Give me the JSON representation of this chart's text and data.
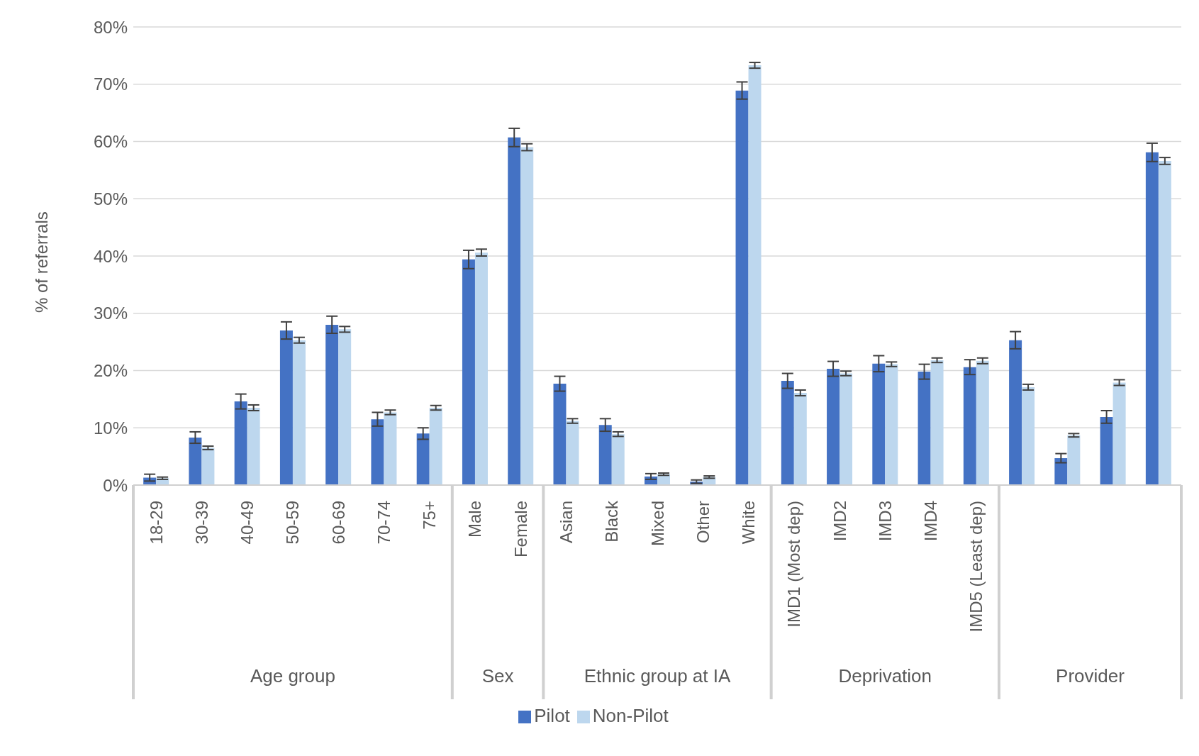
{
  "chart_data": {
    "type": "bar",
    "ylabel": "% of referrals",
    "categories": [
      "18-29",
      "30-39",
      "40-49",
      "50-59",
      "60-69",
      "70-74",
      "75+",
      "Male",
      "Female",
      "Asian",
      "Black",
      "Mixed",
      "Other",
      "White",
      "IMD1 (Most dep)",
      "IMD2",
      "IMD3",
      "IMD4",
      "IMD5 (Least dep)",
      null,
      null,
      null,
      null
    ],
    "annotations": [
      "Age group",
      "Sex",
      "Ethnic group at IA",
      "Deprivation",
      "Provider"
    ],
    "series": [
      {
        "name": "Pilot",
        "color": "#4472c4",
        "values": [
          1.3,
          8.3,
          14.6,
          27.0,
          28.0,
          11.5,
          9.0,
          39.4,
          60.7,
          17.7,
          10.5,
          1.5,
          0.6,
          68.9,
          18.2,
          20.3,
          21.2,
          19.8,
          20.6,
          25.3,
          4.7,
          11.9,
          58.1
        ],
        "errors": [
          0.6,
          1.0,
          1.3,
          1.5,
          1.5,
          1.2,
          1.0,
          1.6,
          1.6,
          1.3,
          1.1,
          0.5,
          0.3,
          1.5,
          1.3,
          1.3,
          1.4,
          1.3,
          1.3,
          1.5,
          0.8,
          1.1,
          1.6
        ]
      },
      {
        "name": "Non-Pilot",
        "color": "#bdd7ee",
        "values": [
          1.2,
          6.5,
          13.5,
          25.3,
          27.2,
          12.7,
          13.5,
          40.6,
          59.0,
          11.2,
          8.9,
          1.9,
          1.4,
          73.3,
          16.1,
          19.5,
          21.1,
          21.8,
          21.7,
          17.1,
          8.7,
          17.9,
          56.6
        ],
        "errors": [
          0.2,
          0.3,
          0.5,
          0.5,
          0.5,
          0.4,
          0.4,
          0.6,
          0.6,
          0.4,
          0.4,
          0.2,
          0.2,
          0.5,
          0.5,
          0.4,
          0.4,
          0.4,
          0.5,
          0.5,
          0.3,
          0.5,
          0.6
        ]
      }
    ],
    "ylim": [
      0,
      80
    ],
    "yticks": [
      {
        "value": 0,
        "label": "0%"
      },
      {
        "value": 10,
        "label": "10%"
      },
      {
        "value": 20,
        "label": "20%"
      },
      {
        "value": 30,
        "label": "30%"
      },
      {
        "value": 40,
        "label": "40%"
      },
      {
        "value": 50,
        "label": "50%"
      },
      {
        "value": 60,
        "label": "60%"
      },
      {
        "value": 70,
        "label": "70%"
      },
      {
        "value": 80,
        "label": "80%"
      }
    ],
    "grid": "y",
    "legend": "bottom"
  }
}
